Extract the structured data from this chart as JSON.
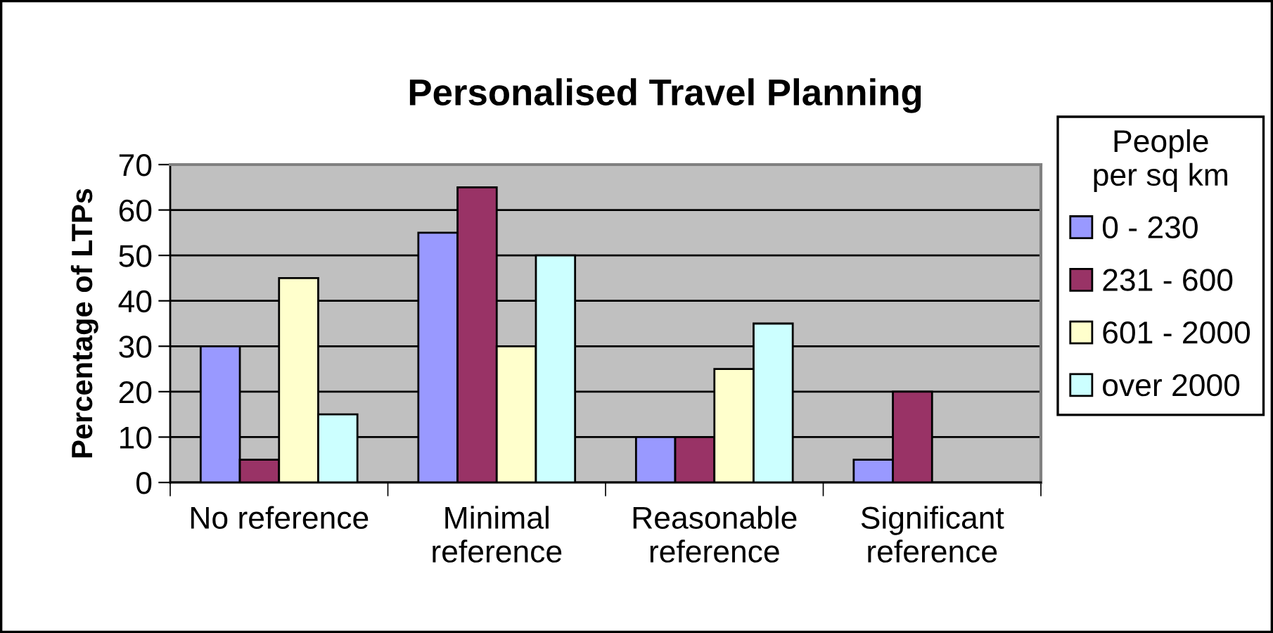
{
  "chart_data": {
    "type": "bar",
    "title": "Personalised Travel Planning",
    "ylabel": "Percentage of LTPs",
    "legend_title": "People\nper sq km",
    "categories": [
      "No reference",
      "Minimal\nreference",
      "Reasonable\nreference",
      "Significant\nreference"
    ],
    "series": [
      {
        "name": "0 - 230",
        "color": "#9999ff",
        "values": [
          30,
          55,
          10,
          5
        ]
      },
      {
        "name": "231 - 600",
        "color": "#993366",
        "values": [
          5,
          65,
          10,
          20
        ]
      },
      {
        "name": "601 - 2000",
        "color": "#ffffcc",
        "values": [
          45,
          30,
          25,
          null
        ]
      },
      {
        "name": "over 2000",
        "color": "#ccffff",
        "values": [
          15,
          50,
          35,
          null
        ]
      }
    ],
    "ylim": [
      0,
      70
    ],
    "yticks": [
      0,
      10,
      20,
      30,
      40,
      50,
      60,
      70
    ],
    "grid": "y",
    "legend": "right"
  }
}
